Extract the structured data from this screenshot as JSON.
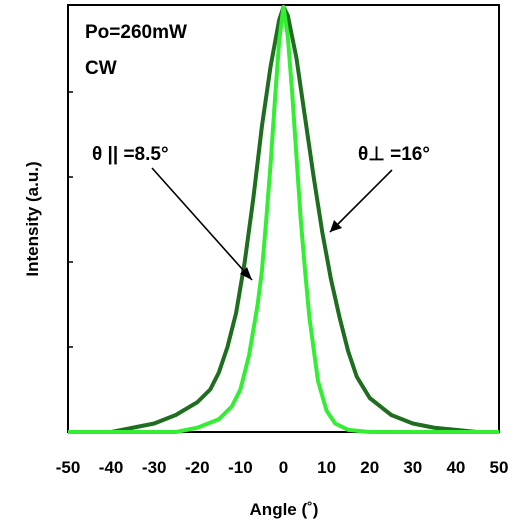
{
  "chart_data": {
    "type": "line",
    "xlabel": "Angle (˚)",
    "ylabel": "Intensity (a.u.)",
    "xlim": [
      -50,
      50
    ],
    "ylim": [
      0,
      1
    ],
    "xticks": [
      -50,
      -40,
      -30,
      -20,
      -10,
      0,
      10,
      20,
      30,
      40,
      50
    ],
    "xtick_labels": [
      "-50",
      "-40",
      "-30",
      "-20",
      "-10",
      "0",
      "10",
      "20",
      "30",
      "40",
      "50"
    ],
    "yticks": [
      0.2,
      0.4,
      0.6,
      0.8
    ],
    "grid": false,
    "annotations": {
      "power": "Po=260mW",
      "mode": "CW",
      "parallel": "θ || =8.5°",
      "perpendicular": "θ⊥ =16°"
    },
    "series": [
      {
        "color": "#1f6e1f",
        "x": [
          -50,
          -40,
          -35,
          -30,
          -25,
          -20,
          -17,
          -15,
          -13,
          -11,
          -9,
          -7,
          -5,
          -3,
          -1,
          0,
          1,
          3,
          5,
          7,
          9,
          11,
          13,
          15,
          17,
          20,
          25,
          30,
          35,
          40,
          45,
          50
        ],
        "y": [
          0,
          0.0,
          0.01,
          0.02,
          0.04,
          0.07,
          0.1,
          0.14,
          0.2,
          0.28,
          0.4,
          0.55,
          0.72,
          0.86,
          0.97,
          1.0,
          0.98,
          0.88,
          0.74,
          0.6,
          0.47,
          0.36,
          0.27,
          0.19,
          0.13,
          0.08,
          0.04,
          0.02,
          0.01,
          0.005,
          0.0,
          0
        ]
      },
      {
        "color": "#33ee33",
        "x": [
          -50,
          -25,
          -20,
          -15,
          -12,
          -10,
          -8,
          -6,
          -5,
          -4,
          -3,
          -2,
          -1,
          0,
          1,
          2,
          3,
          4,
          5,
          6,
          8,
          10,
          12,
          15,
          20,
          25,
          50
        ],
        "y": [
          0,
          0,
          0.01,
          0.03,
          0.06,
          0.1,
          0.18,
          0.3,
          0.38,
          0.5,
          0.63,
          0.78,
          0.92,
          1.0,
          0.93,
          0.8,
          0.65,
          0.5,
          0.38,
          0.27,
          0.12,
          0.05,
          0.02,
          0.005,
          0,
          0,
          0
        ]
      }
    ]
  }
}
